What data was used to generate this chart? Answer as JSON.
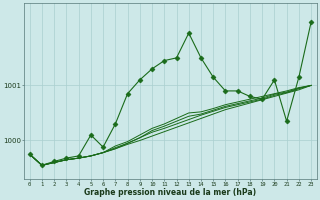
{
  "title": "Graphe pression niveau de la mer (hPa)",
  "bg_color": "#cde8e8",
  "grid_color": "#aacfcf",
  "line_color": "#1a6b1a",
  "x_ticks": [
    0,
    1,
    2,
    3,
    4,
    5,
    6,
    7,
    8,
    9,
    10,
    11,
    12,
    13,
    14,
    15,
    16,
    17,
    18,
    19,
    20,
    21,
    22,
    23
  ],
  "ylim": [
    999.3,
    1002.5
  ],
  "yticks": [
    1000,
    1001
  ],
  "lines": [
    {
      "y": [
        999.75,
        999.55,
        999.6,
        999.65,
        999.68,
        999.72,
        999.78,
        999.85,
        999.93,
        1000.0,
        1000.08,
        1000.16,
        1000.24,
        1000.32,
        1000.4,
        1000.48,
        1000.56,
        1000.62,
        1000.68,
        1000.74,
        1000.8,
        1000.86,
        1000.92,
        1001.0
      ],
      "lw": 0.7,
      "ms": 0,
      "style": "-"
    },
    {
      "y": [
        999.75,
        999.55,
        999.6,
        999.65,
        999.68,
        999.72,
        999.78,
        999.87,
        999.95,
        1000.05,
        1000.15,
        1000.22,
        1000.3,
        1000.38,
        1000.46,
        1000.53,
        1000.6,
        1000.65,
        1000.7,
        1000.75,
        1000.82,
        1000.87,
        1000.94,
        1001.0
      ],
      "lw": 0.7,
      "ms": 0,
      "style": "-"
    },
    {
      "y": [
        999.75,
        999.55,
        999.6,
        999.65,
        999.68,
        999.72,
        999.78,
        999.9,
        999.98,
        1000.1,
        1000.22,
        1000.3,
        1000.4,
        1000.5,
        1000.52,
        1000.58,
        1000.65,
        1000.7,
        1000.75,
        1000.8,
        1000.85,
        1000.9,
        1000.96,
        1001.0
      ],
      "lw": 0.7,
      "ms": 0,
      "style": "-"
    },
    {
      "y": [
        999.75,
        999.55,
        999.6,
        999.65,
        999.68,
        999.72,
        999.78,
        999.85,
        999.95,
        1000.05,
        1000.18,
        1000.26,
        1000.35,
        1000.44,
        1000.48,
        1000.55,
        1000.62,
        1000.67,
        1000.72,
        1000.77,
        1000.84,
        1000.88,
        1000.95,
        1001.0
      ],
      "lw": 0.7,
      "ms": 0,
      "style": "-"
    },
    {
      "y": [
        999.75,
        999.55,
        999.62,
        999.68,
        999.72,
        1000.1,
        999.88,
        1000.3,
        1000.85,
        1001.1,
        1001.3,
        1001.45,
        1001.5,
        1001.95,
        1001.5,
        1001.15,
        1000.9,
        1000.9,
        1000.8,
        1000.75,
        1001.1,
        1000.35,
        1001.15,
        1002.15
      ],
      "lw": 0.8,
      "ms": 2.5,
      "style": "-"
    }
  ],
  "marker": "D",
  "markersize": 2.5,
  "linewidth": 0.8,
  "figsize": [
    3.2,
    2.0
  ],
  "dpi": 100
}
